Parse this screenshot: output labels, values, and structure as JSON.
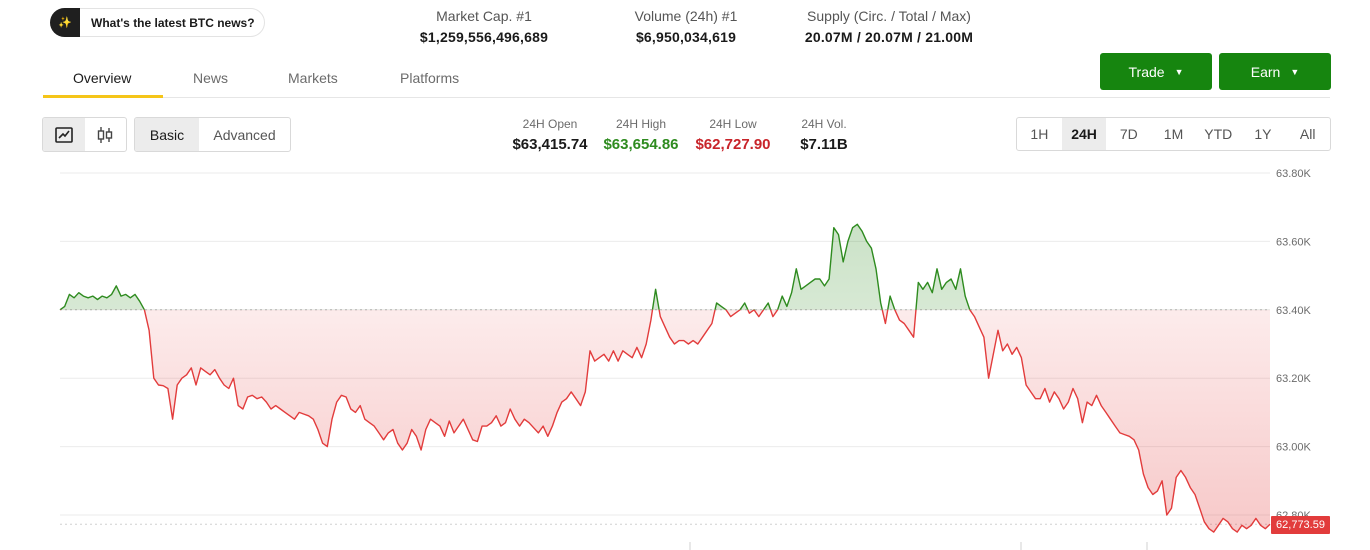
{
  "ai_prompt": {
    "text": "What's the latest BTC news?",
    "icon": "sparkle-icon"
  },
  "stats": [
    {
      "label": "Market Cap. #1",
      "value": "$1,259,556,496,689"
    },
    {
      "label": "Volume (24h) #1",
      "value": "$6,950,034,619"
    },
    {
      "label": "Supply (Circ. / Total / Max)",
      "value": "20.07M / 20.07M / 21.00M"
    }
  ],
  "tabs": [
    {
      "label": "Overview",
      "active": true
    },
    {
      "label": "News"
    },
    {
      "label": "Markets"
    },
    {
      "label": "Platforms"
    }
  ],
  "actions": {
    "trade": "Trade",
    "earn": "Earn"
  },
  "chart_modes": {
    "basic": "Basic",
    "advanced": "Advanced",
    "selected": "Basic"
  },
  "chart_type_icons": [
    "line-chart-icon",
    "candlestick-icon"
  ],
  "ohlc": {
    "open": {
      "label": "24H Open",
      "value": "$63,415.74"
    },
    "high": {
      "label": "24H High",
      "value": "$63,654.86"
    },
    "low": {
      "label": "24H Low",
      "value": "$62,727.90"
    },
    "vol": {
      "label": "24H Vol.",
      "value": "$7.11B"
    }
  },
  "ranges": [
    "1H",
    "24H",
    "7D",
    "1M",
    "YTD",
    "1Y",
    "All"
  ],
  "selected_range": "24H",
  "colors": {
    "up": "#2e8b1f",
    "down": "#e23c3c",
    "accent": "#f5c518",
    "button": "#16850f"
  },
  "last_price_label": "62,773.59",
  "chart_data": {
    "type": "area",
    "ylim": [
      62700,
      63800
    ],
    "y_ticks": [
      "63.80K",
      "63.60K",
      "63.40K",
      "63.20K",
      "63.00K",
      "62.80K"
    ],
    "y_tick_values": [
      63800,
      63600,
      63400,
      63200,
      63000,
      62800
    ],
    "baseline": 63400,
    "grid": true,
    "series": [
      {
        "values": [
          63400,
          63410,
          63445,
          63435,
          63450,
          63440,
          63435,
          63440,
          63430,
          63440,
          63435,
          63445,
          63470,
          63440,
          63445,
          63435,
          63445,
          63425,
          63400,
          63340,
          63200,
          63180,
          63178,
          63170,
          63080,
          63180,
          63200,
          63210,
          63230,
          63180,
          63230,
          63220,
          63210,
          63225,
          63200,
          63180,
          63170,
          63200,
          63120,
          63110,
          63145,
          63150,
          63140,
          63145,
          63130,
          63110,
          63120,
          63110,
          63100,
          63090,
          63080,
          63100,
          63095,
          63090,
          63080,
          63050,
          63010,
          63000,
          63080,
          63130,
          63150,
          63145,
          63110,
          63100,
          63120,
          63080,
          63070,
          63060,
          63040,
          63020,
          63040,
          63050,
          63010,
          62990,
          63010,
          63050,
          63030,
          62990,
          63050,
          63080,
          63070,
          63060,
          63030,
          63075,
          63040,
          63060,
          63080,
          63050,
          63020,
          63015,
          63060,
          63060,
          63070,
          63090,
          63060,
          63070,
          63110,
          63080,
          63060,
          63080,
          63070,
          63055,
          63040,
          63060,
          63030,
          63060,
          63100,
          63130,
          63140,
          63160,
          63140,
          63120,
          63160,
          63280,
          63250,
          63260,
          63270,
          63250,
          63280,
          63250,
          63280,
          63270,
          63260,
          63290,
          63260,
          63300,
          63370,
          63460,
          63380,
          63350,
          63320,
          63300,
          63310,
          63310,
          63300,
          63310,
          63300,
          63320,
          63340,
          63360,
          63420,
          63410,
          63400,
          63380,
          63390,
          63400,
          63420,
          63390,
          63400,
          63380,
          63400,
          63420,
          63380,
          63400,
          63440,
          63410,
          63450,
          63520,
          63460,
          63470,
          63480,
          63490,
          63490,
          63470,
          63490,
          63640,
          63620,
          63540,
          63600,
          63640,
          63650,
          63630,
          63600,
          63580,
          63520,
          63420,
          63360,
          63440,
          63400,
          63370,
          63360,
          63340,
          63320,
          63480,
          63460,
          63480,
          63450,
          63520,
          63460,
          63480,
          63490,
          63460,
          63520,
          63440,
          63400,
          63380,
          63350,
          63320,
          63200,
          63270,
          63340,
          63280,
          63300,
          63270,
          63290,
          63260,
          63180,
          63160,
          63140,
          63140,
          63170,
          63130,
          63160,
          63140,
          63110,
          63130,
          63170,
          63140,
          63070,
          63130,
          63120,
          63150,
          63120,
          63100,
          63080,
          63060,
          63040,
          63035,
          63030,
          63020,
          62990,
          62920,
          62880,
          62860,
          62870,
          62900,
          62800,
          62820,
          62910,
          62930,
          62910,
          62880,
          62860,
          62820,
          62780,
          62760,
          62750,
          62770,
          62790,
          62780,
          62760,
          62750,
          62770,
          62760,
          62770,
          62790,
          62770,
          62760,
          62773
        ]
      }
    ]
  }
}
